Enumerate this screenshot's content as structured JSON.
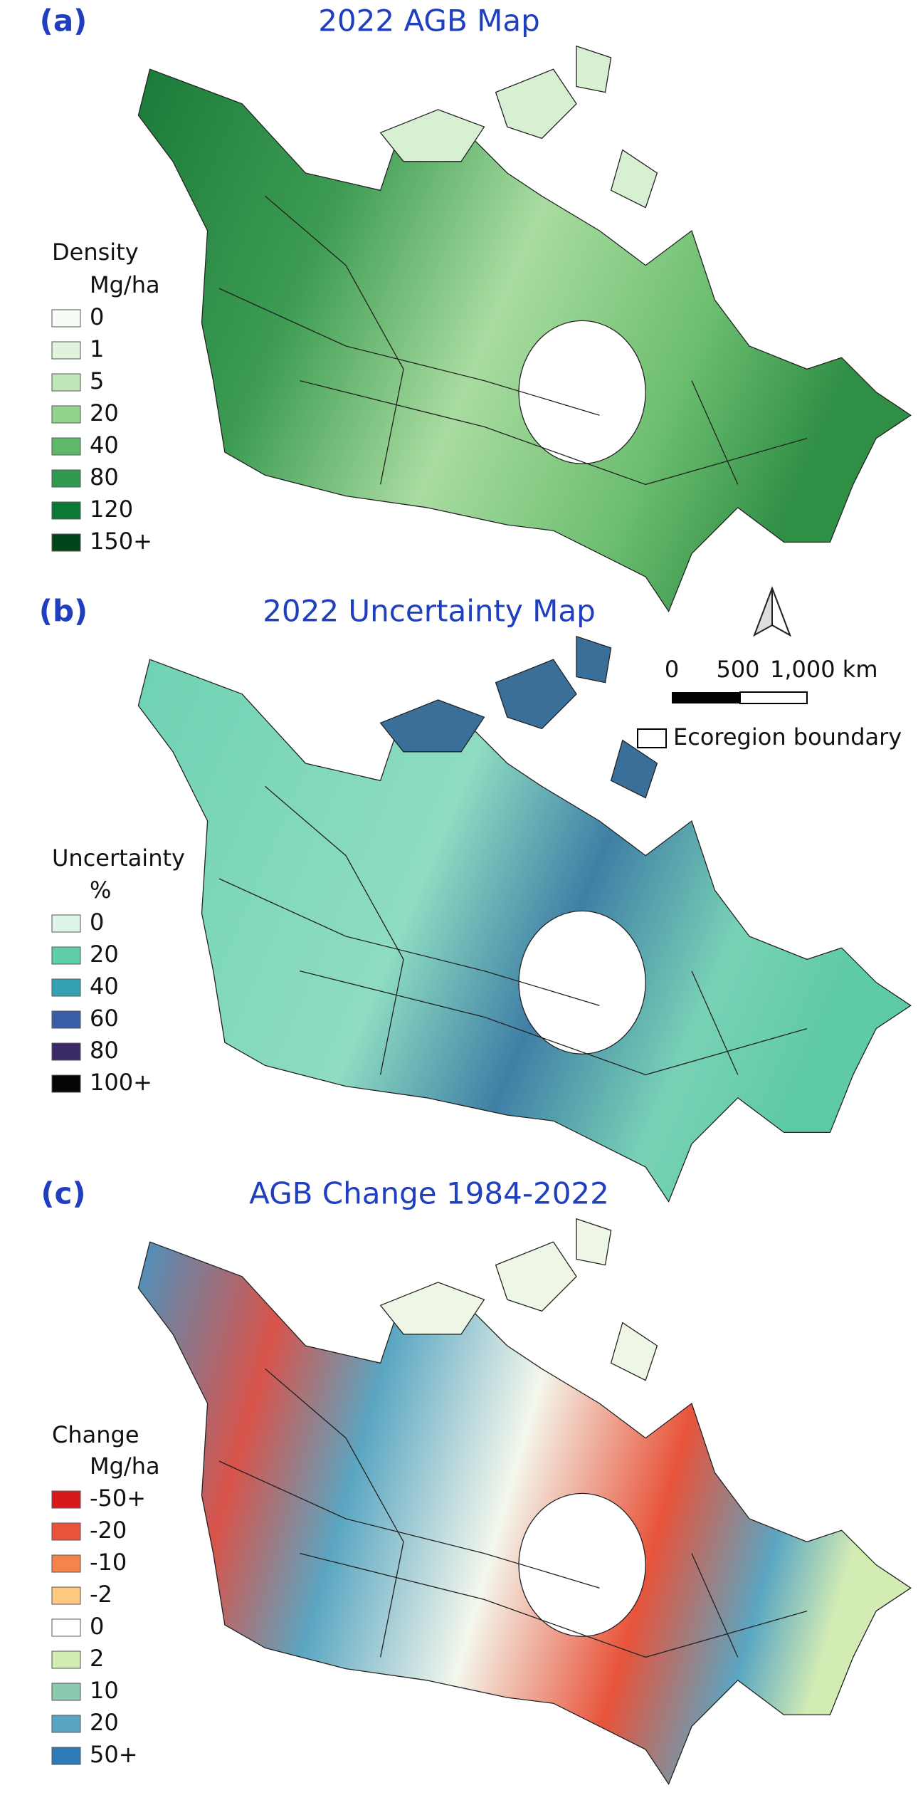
{
  "panels": [
    {
      "label": "(a)",
      "title": "2022 AGB Map",
      "legend_title": "Density",
      "legend_unit": "Mg/ha",
      "legend": [
        {
          "label": "0",
          "color": "#f7fcf5"
        },
        {
          "label": "1",
          "color": "#e1f3dc"
        },
        {
          "label": "5",
          "color": "#bfe6b8"
        },
        {
          "label": "20",
          "color": "#94d38e"
        },
        {
          "label": "40",
          "color": "#5fb96a"
        },
        {
          "label": "80",
          "color": "#2f9a4f"
        },
        {
          "label": "120",
          "color": "#0c7a36"
        },
        {
          "label": "150+",
          "color": "#00441b"
        }
      ]
    },
    {
      "label": "(b)",
      "title": "2022 Uncertainty Map",
      "legend_title": "Uncertainty",
      "legend_unit": "%",
      "legend": [
        {
          "label": "0",
          "color": "#dff5ea"
        },
        {
          "label": "20",
          "color": "#5ecfaa"
        },
        {
          "label": "40",
          "color": "#35a2b4"
        },
        {
          "label": "60",
          "color": "#3a5fa6"
        },
        {
          "label": "80",
          "color": "#3a2b66"
        },
        {
          "label": "100+",
          "color": "#050505"
        }
      ]
    },
    {
      "label": "(c)",
      "title": "AGB Change 1984-2022",
      "legend_title": "Change",
      "legend_unit": "Mg/ha",
      "legend": [
        {
          "label": "-50+",
          "color": "#d7191c"
        },
        {
          "label": "-20",
          "color": "#e8533a"
        },
        {
          "label": "-10",
          "color": "#f4844a"
        },
        {
          "label": "-2",
          "color": "#fdc980"
        },
        {
          "label": "0",
          "color": "#ffffff"
        },
        {
          "label": "2",
          "color": "#d3ecb4"
        },
        {
          "label": "10",
          "color": "#8ccab0"
        },
        {
          "label": "20",
          "color": "#5aa6c2"
        },
        {
          "label": "50+",
          "color": "#2c7bb6"
        }
      ]
    }
  ],
  "scale_bar": {
    "start": "0",
    "mid": "500",
    "end": "1,000 km"
  },
  "boundary_legend": "Ecoregion boundary"
}
